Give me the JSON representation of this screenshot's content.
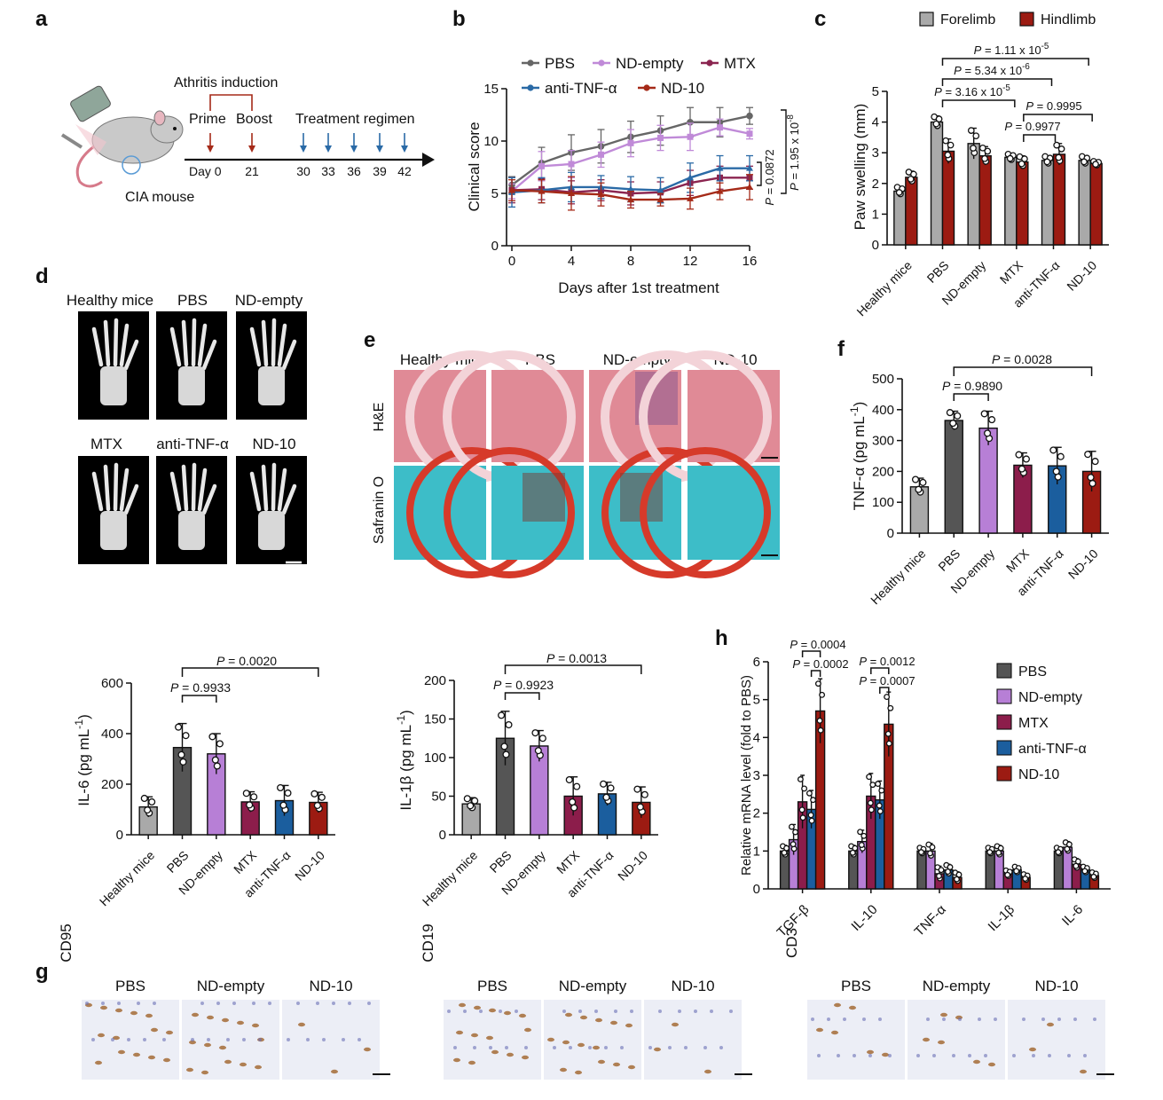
{
  "panel_letters": {
    "a": "a",
    "b": "b",
    "c": "c",
    "d": "d",
    "e": "e",
    "f": "f",
    "g": "g",
    "h": "h"
  },
  "colors": {
    "healthy": "#a9a9a9",
    "pbs": "#555555",
    "nd_empty": "#b77fd6",
    "mtx": "#8c1d4b",
    "anti_tnf": "#1b5e9e",
    "nd10": "#9c1b12",
    "line_pbs": "#666666",
    "line_nd_empty": "#c08ad8",
    "line_mtx": "#8b2550",
    "line_anti": "#2a6aa6",
    "line_nd10": "#a52a18",
    "forelimb": "#a9a9a9",
    "hindlimb": "#9c1b12"
  },
  "panel_a": {
    "title": "Athritis induction",
    "prime": "Prime",
    "boost": "Boost",
    "regimen": "Treatment regimen",
    "day_label": "Day 0",
    "days": [
      "21",
      "30",
      "33",
      "36",
      "39",
      "42"
    ],
    "mouse_label": "CIA mouse"
  },
  "panel_d": {
    "labels": [
      "Healthy mice",
      "PBS",
      "ND-empty",
      "MTX",
      "anti-TNF-α",
      "ND-10"
    ]
  },
  "panel_e": {
    "columns": [
      "Healthy mice",
      "PBS",
      "ND-empty",
      "ND-10"
    ],
    "rows": [
      "H&E",
      "Safranin O"
    ]
  },
  "panel_g": {
    "groups": [
      {
        "marker": "CD95",
        "columns": [
          "PBS",
          "ND-empty",
          "ND-10"
        ]
      },
      {
        "marker": "CD19",
        "columns": [
          "PBS",
          "ND-empty",
          "ND-10"
        ]
      },
      {
        "marker": "CD3",
        "columns": [
          "PBS",
          "ND-empty",
          "ND-10"
        ]
      }
    ]
  },
  "chart_data": [
    {
      "id": "b",
      "type": "line",
      "xlabel": "Days after 1st treatment",
      "ylabel": "Clinical score",
      "xlim": [
        0,
        16
      ],
      "ylim": [
        0,
        15
      ],
      "xticks": [
        0,
        4,
        8,
        12,
        16
      ],
      "yticks": [
        0,
        5,
        10,
        15
      ],
      "x": [
        0,
        2,
        4,
        6,
        8,
        10,
        12,
        14,
        16
      ],
      "legend_position": "top",
      "series": [
        {
          "name": "PBS",
          "values": [
            5.8,
            7.9,
            8.9,
            9.5,
            10.4,
            11,
            11.8,
            11.8,
            12.4
          ],
          "errors": [
            0.8,
            1.5,
            1.7,
            1.6,
            1.5,
            1.4,
            1.4,
            1.4,
            0.8
          ]
        },
        {
          "name": "ND-empty",
          "values": [
            5.2,
            7.6,
            7.8,
            8.7,
            9.8,
            10.3,
            10.4,
            11.3,
            10.7
          ],
          "errors": [
            0.7,
            1.4,
            1.3,
            1.2,
            1.3,
            1.2,
            1.3,
            0.8,
            0.5
          ]
        },
        {
          "name": "MTX",
          "values": [
            5.3,
            5.4,
            5.1,
            5.3,
            5.0,
            5.1,
            6.0,
            6.5,
            6.5
          ],
          "errors": [
            1.2,
            1.0,
            1.1,
            1.0,
            1.1,
            1.0,
            1.2,
            1.1,
            1.1
          ]
        },
        {
          "name": "anti-TNF-α",
          "values": [
            5.1,
            5.3,
            5.6,
            5.6,
            5.4,
            5.3,
            6.5,
            7.4,
            7.4
          ],
          "errors": [
            1.4,
            1.2,
            1.4,
            1.1,
            1.2,
            1.2,
            1.4,
            1.2,
            1.2
          ]
        },
        {
          "name": "ND-10",
          "values": [
            5.3,
            5.2,
            5.0,
            4.9,
            4.4,
            4.4,
            4.5,
            5.2,
            5.6
          ],
          "errors": [
            1.0,
            1.1,
            1.6,
            1.1,
            0.8,
            0.6,
            1.0,
            0.8,
            1.2
          ]
        }
      ],
      "annotations": [
        "P = 0.0872",
        "P = 1.95 x 10-8"
      ]
    },
    {
      "id": "c",
      "type": "bar",
      "ylabel": "Paw swelling (mm)",
      "ylim": [
        0,
        5
      ],
      "yticks": [
        0,
        1,
        2,
        3,
        4,
        5
      ],
      "categories": [
        "Healthy mice",
        "PBS",
        "ND-empty",
        "MTX",
        "anti-TNF-α",
        "ND-10"
      ],
      "legend_position": "top",
      "series": [
        {
          "name": "Forelimb",
          "values": [
            1.75,
            4.0,
            3.3,
            2.85,
            2.75,
            2.75
          ],
          "errors": [
            0.15,
            0.2,
            0.5,
            0.12,
            0.15,
            0.15
          ]
        },
        {
          "name": "Hindlimb",
          "values": [
            2.2,
            3.05,
            2.9,
            2.7,
            2.95,
            2.65
          ],
          "errors": [
            0.2,
            0.4,
            0.3,
            0.2,
            0.35,
            0.08
          ]
        }
      ],
      "annotations": [
        "P = 1.11 x 10-5",
        "P = 5.34 x 10-6",
        "P = 3.16 x 10-5",
        "P = 0.9995",
        "P = 0.9977"
      ]
    },
    {
      "id": "f",
      "type": "bar",
      "ylabel": "TNF-α (pg mL-1)",
      "ylim": [
        0,
        500
      ],
      "yticks": [
        0,
        100,
        200,
        300,
        400,
        500
      ],
      "categories": [
        "Healthy mice",
        "PBS",
        "ND-empty",
        "MTX",
        "anti-TNF-α",
        "ND-10"
      ],
      "values": [
        150,
        365,
        340,
        220,
        218,
        200
      ],
      "errors": [
        28,
        30,
        55,
        40,
        60,
        65
      ],
      "annotations": [
        "P = 0.0028",
        "P = 0.9890"
      ]
    },
    {
      "id": "il6",
      "type": "bar",
      "ylabel": "IL-6 (pg mL-1)",
      "ylim": [
        0,
        600
      ],
      "yticks": [
        0,
        200,
        400,
        600
      ],
      "categories": [
        "Healthy mice",
        "PBS",
        "ND-empty",
        "MTX",
        "anti-TNF-α",
        "ND-10"
      ],
      "values": [
        110,
        345,
        320,
        130,
        135,
        128
      ],
      "errors": [
        40,
        95,
        80,
        40,
        60,
        40
      ],
      "annotations": [
        "P = 0.0020",
        "P = 0.9933"
      ]
    },
    {
      "id": "il1b",
      "type": "bar",
      "ylabel": "IL-1β (pg mL-1)",
      "ylim": [
        0,
        200
      ],
      "yticks": [
        0,
        50,
        100,
        150,
        200
      ],
      "categories": [
        "Healthy mice",
        "PBS",
        "ND-empty",
        "MTX",
        "anti-TNF-α",
        "ND-10"
      ],
      "values": [
        40,
        125,
        115,
        50,
        53,
        42
      ],
      "errors": [
        8,
        35,
        20,
        25,
        15,
        20
      ],
      "annotations": [
        "P = 0.0013",
        "P = 0.9923"
      ]
    },
    {
      "id": "h",
      "type": "bar",
      "ylabel": "Relative mRNA level (fold to PBS)",
      "ylim": [
        0,
        6
      ],
      "yticks": [
        0,
        1,
        2,
        3,
        4,
        5,
        6
      ],
      "categories": [
        "TGF-β",
        "IL-10",
        "TNF-α",
        "IL-1β",
        "IL-6"
      ],
      "legend_position": "right",
      "series": [
        {
          "name": "PBS",
          "values": [
            1.0,
            1.0,
            1.0,
            1.0,
            1.0
          ],
          "errors": [
            0.15,
            0.15,
            0.1,
            0.1,
            0.1
          ]
        },
        {
          "name": "ND-empty",
          "values": [
            1.3,
            1.25,
            1.0,
            1.0,
            1.1
          ],
          "errors": [
            0.4,
            0.3,
            0.2,
            0.15,
            0.15
          ]
        },
        {
          "name": "MTX",
          "values": [
            2.3,
            2.45,
            0.4,
            0.4,
            0.65
          ],
          "errors": [
            0.7,
            0.6,
            0.2,
            0.1,
            0.15
          ]
        },
        {
          "name": "anti-TNF-α",
          "values": [
            2.1,
            2.35,
            0.5,
            0.5,
            0.5
          ],
          "errors": [
            0.5,
            0.5,
            0.15,
            0.1,
            0.1
          ]
        },
        {
          "name": "ND-10",
          "values": [
            4.7,
            4.35,
            0.3,
            0.3,
            0.35
          ],
          "errors": [
            0.85,
            0.85,
            0.15,
            0.1,
            0.1
          ]
        }
      ],
      "annotations": [
        "P = 0.0004",
        "P = 0.0002",
        "P = 0.0012",
        "P = 0.0007"
      ]
    }
  ]
}
